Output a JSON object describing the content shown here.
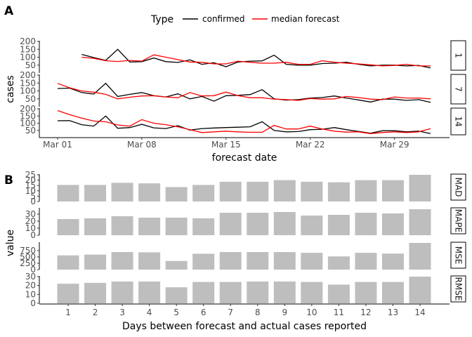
{
  "panel_labels": [
    "A",
    "B"
  ],
  "chart_data": [
    {
      "type": "line",
      "panel": "A",
      "legend_title": "Type",
      "legend_placement": "top",
      "xlabel": "forecast date",
      "ylabel": "cases",
      "x_tick_labels": [
        "Mar 01",
        "Mar 08",
        "Mar 15",
        "Mar 22",
        "Mar 29"
      ],
      "x": [
        "Mar 01",
        "Mar 02",
        "Mar 03",
        "Mar 04",
        "Mar 05",
        "Mar 06",
        "Mar 07",
        "Mar 08",
        "Mar 09",
        "Mar 10",
        "Mar 11",
        "Mar 12",
        "Mar 13",
        "Mar 14",
        "Mar 15",
        "Mar 16",
        "Mar 17",
        "Mar 18",
        "Mar 19",
        "Mar 20",
        "Mar 21",
        "Mar 22",
        "Mar 23",
        "Mar 24",
        "Mar 25",
        "Mar 26",
        "Mar 27",
        "Mar 28",
        "Mar 29",
        "Mar 30",
        "Mar 31",
        "Apr 01"
      ],
      "colors": {
        "confirmed": "#000000",
        "median forecast": "#ff0000"
      },
      "grid": false,
      "facets": [
        {
          "label": "1",
          "ylim": [
            0,
            200
          ],
          "y_ticks": [
            50,
            100,
            150,
            200
          ],
          "series": [
            {
              "name": "confirmed",
              "values": [
                null,
                null,
                118,
                98,
                80,
                150,
                70,
                72,
                95,
                72,
                67,
                83,
                55,
                65,
                40,
                70,
                75,
                77,
                113,
                55,
                50,
                50,
                60,
                62,
                68,
                55,
                45,
                50,
                50,
                45,
                48,
                32
              ]
            },
            {
              "name": "median forecast",
              "values": [
                null,
                null,
                100,
                93,
                78,
                73,
                80,
                75,
                115,
                100,
                85,
                70,
                68,
                58,
                58,
                75,
                68,
                62,
                62,
                68,
                55,
                55,
                78,
                68,
                62,
                58,
                52,
                45,
                48,
                55,
                45,
                45
              ]
            }
          ]
        },
        {
          "label": "7",
          "ylim": [
            0,
            200
          ],
          "y_ticks": [
            50,
            100,
            150,
            200
          ],
          "series": [
            {
              "name": "confirmed",
              "values": [
                115,
                118,
                90,
                80,
                148,
                65,
                78,
                90,
                70,
                62,
                82,
                50,
                65,
                35,
                70,
                72,
                77,
                108,
                50,
                42,
                45,
                55,
                58,
                68,
                55,
                43,
                30,
                48,
                48,
                40,
                45,
                28
              ]
            },
            {
              "name": "median forecast",
              "values": [
                148,
                120,
                100,
                92,
                78,
                50,
                60,
                68,
                70,
                62,
                57,
                90,
                68,
                70,
                93,
                70,
                57,
                57,
                48,
                45,
                40,
                52,
                48,
                50,
                65,
                58,
                48,
                45,
                62,
                55,
                55,
                50
              ]
            }
          ]
        },
        {
          "label": "14",
          "ylim": [
            0,
            200
          ],
          "y_ticks": [
            50,
            100,
            150,
            200
          ],
          "series": [
            {
              "name": "confirmed",
              "values": [
                117,
                118,
                90,
                80,
                150,
                65,
                70,
                92,
                68,
                63,
                83,
                52,
                63,
                67,
                70,
                72,
                75,
                110,
                50,
                40,
                42,
                55,
                58,
                70,
                55,
                43,
                30,
                48,
                48,
                40,
                45,
                28
              ]
            },
            {
              "name": "median forecast",
              "values": [
                188,
                160,
                135,
                115,
                110,
                88,
                80,
                125,
                100,
                90,
                75,
                55,
                35,
                40,
                45,
                40,
                37,
                37,
                85,
                60,
                60,
                80,
                60,
                45,
                38,
                40,
                28,
                35,
                40,
                35,
                40,
                62
              ]
            }
          ]
        }
      ]
    },
    {
      "type": "bar",
      "panel": "B",
      "xlabel": "Days between forecast and actual cases reported",
      "ylabel": "value",
      "categories": [
        "1",
        "2",
        "3",
        "4",
        "5",
        "6",
        "7",
        "8",
        "9",
        "10",
        "11",
        "12",
        "13",
        "14"
      ],
      "bar_color": "#bebebe",
      "grid": false,
      "facets": [
        {
          "label": "MAD",
          "ylim": [
            0,
            25
          ],
          "y_ticks": [
            0,
            5,
            10,
            15,
            20,
            25
          ],
          "values": [
            15.5,
            15.5,
            17.5,
            17,
            13.5,
            15.5,
            18.5,
            18.5,
            20,
            18.5,
            18,
            20,
            20,
            25
          ]
        },
        {
          "label": "MAPE",
          "ylim": [
            0,
            38
          ],
          "y_ticks": [
            0,
            10,
            20,
            30
          ],
          "values": [
            23,
            24,
            27,
            25,
            25,
            24,
            32,
            32,
            33,
            28,
            29,
            32,
            31,
            37
          ]
        },
        {
          "label": "MSE",
          "ylim": [
            0,
            1050
          ],
          "y_ticks": [
            0,
            250,
            500,
            750
          ],
          "values": [
            560,
            590,
            690,
            680,
            340,
            625,
            690,
            690,
            690,
            660,
            520,
            660,
            630,
            1050
          ]
        },
        {
          "label": "RMSE",
          "ylim": [
            0,
            30
          ],
          "y_ticks": [
            0,
            10,
            20,
            30
          ],
          "values": [
            22,
            23,
            24.5,
            24.5,
            18,
            24,
            24,
            24.5,
            24.5,
            24,
            21,
            24,
            24,
            30
          ]
        }
      ]
    }
  ]
}
